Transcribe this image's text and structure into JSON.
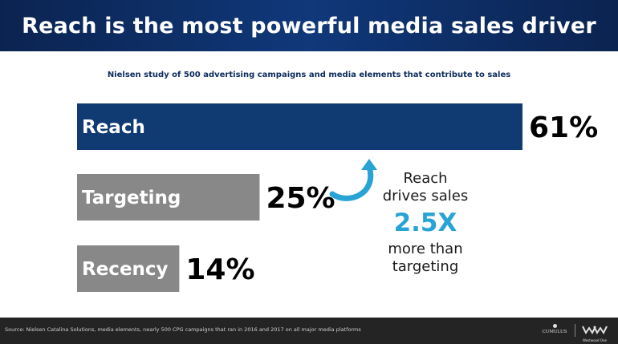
{
  "header": {
    "title": "Reach is the most powerful media sales driver"
  },
  "subtitle": "Nielsen study of 500 advertising campaigns and media elements that contribute to sales",
  "colors": {
    "primary_bar": "#0f3a72",
    "secondary_bar": "#888888",
    "accent": "#27a3d6"
  },
  "chart_data": {
    "type": "bar",
    "orientation": "horizontal",
    "categories": [
      "Reach",
      "Targeting",
      "Recency"
    ],
    "values": [
      61,
      25,
      14
    ],
    "value_labels": [
      "61%",
      "25%",
      "14%"
    ],
    "unit": "%"
  },
  "callout": {
    "line1": "Reach",
    "line2": "drives sales",
    "multiplier": "2.5X",
    "line3": "more than",
    "line4": "targeting",
    "icon": "curved-arrow-icon"
  },
  "footer": {
    "source": "Source: Nielsen Catalina Solutions, media elements, nearly 500 CPG campaigns that ran in 2016 and 2017 on all major media platforms",
    "logo1": "CUMULUS",
    "logo2": "Westwood One"
  }
}
